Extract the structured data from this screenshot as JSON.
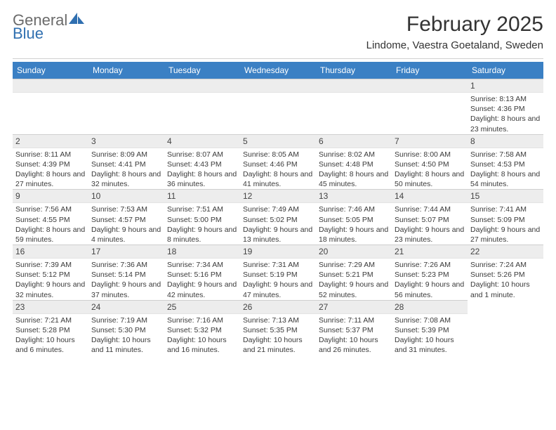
{
  "logo": {
    "text1": "General",
    "text2": "Blue"
  },
  "title": "February 2025",
  "location": "Lindome, Vaestra Goetaland, Sweden",
  "colors": {
    "header_bg": "#3b80c4",
    "header_text": "#ffffff",
    "daynum_bg": "#ededed",
    "logo_gray": "#6b6b6b",
    "logo_blue": "#2f6fb0"
  },
  "weekdays": [
    "Sunday",
    "Monday",
    "Tuesday",
    "Wednesday",
    "Thursday",
    "Friday",
    "Saturday"
  ],
  "weeks": [
    [
      null,
      null,
      null,
      null,
      null,
      null,
      {
        "n": "1",
        "sr": "Sunrise: 8:13 AM",
        "ss": "Sunset: 4:36 PM",
        "dl": "Daylight: 8 hours and 23 minutes."
      }
    ],
    [
      {
        "n": "2",
        "sr": "Sunrise: 8:11 AM",
        "ss": "Sunset: 4:39 PM",
        "dl": "Daylight: 8 hours and 27 minutes."
      },
      {
        "n": "3",
        "sr": "Sunrise: 8:09 AM",
        "ss": "Sunset: 4:41 PM",
        "dl": "Daylight: 8 hours and 32 minutes."
      },
      {
        "n": "4",
        "sr": "Sunrise: 8:07 AM",
        "ss": "Sunset: 4:43 PM",
        "dl": "Daylight: 8 hours and 36 minutes."
      },
      {
        "n": "5",
        "sr": "Sunrise: 8:05 AM",
        "ss": "Sunset: 4:46 PM",
        "dl": "Daylight: 8 hours and 41 minutes."
      },
      {
        "n": "6",
        "sr": "Sunrise: 8:02 AM",
        "ss": "Sunset: 4:48 PM",
        "dl": "Daylight: 8 hours and 45 minutes."
      },
      {
        "n": "7",
        "sr": "Sunrise: 8:00 AM",
        "ss": "Sunset: 4:50 PM",
        "dl": "Daylight: 8 hours and 50 minutes."
      },
      {
        "n": "8",
        "sr": "Sunrise: 7:58 AM",
        "ss": "Sunset: 4:53 PM",
        "dl": "Daylight: 8 hours and 54 minutes."
      }
    ],
    [
      {
        "n": "9",
        "sr": "Sunrise: 7:56 AM",
        "ss": "Sunset: 4:55 PM",
        "dl": "Daylight: 8 hours and 59 minutes."
      },
      {
        "n": "10",
        "sr": "Sunrise: 7:53 AM",
        "ss": "Sunset: 4:57 PM",
        "dl": "Daylight: 9 hours and 4 minutes."
      },
      {
        "n": "11",
        "sr": "Sunrise: 7:51 AM",
        "ss": "Sunset: 5:00 PM",
        "dl": "Daylight: 9 hours and 8 minutes."
      },
      {
        "n": "12",
        "sr": "Sunrise: 7:49 AM",
        "ss": "Sunset: 5:02 PM",
        "dl": "Daylight: 9 hours and 13 minutes."
      },
      {
        "n": "13",
        "sr": "Sunrise: 7:46 AM",
        "ss": "Sunset: 5:05 PM",
        "dl": "Daylight: 9 hours and 18 minutes."
      },
      {
        "n": "14",
        "sr": "Sunrise: 7:44 AM",
        "ss": "Sunset: 5:07 PM",
        "dl": "Daylight: 9 hours and 23 minutes."
      },
      {
        "n": "15",
        "sr": "Sunrise: 7:41 AM",
        "ss": "Sunset: 5:09 PM",
        "dl": "Daylight: 9 hours and 27 minutes."
      }
    ],
    [
      {
        "n": "16",
        "sr": "Sunrise: 7:39 AM",
        "ss": "Sunset: 5:12 PM",
        "dl": "Daylight: 9 hours and 32 minutes."
      },
      {
        "n": "17",
        "sr": "Sunrise: 7:36 AM",
        "ss": "Sunset: 5:14 PM",
        "dl": "Daylight: 9 hours and 37 minutes."
      },
      {
        "n": "18",
        "sr": "Sunrise: 7:34 AM",
        "ss": "Sunset: 5:16 PM",
        "dl": "Daylight: 9 hours and 42 minutes."
      },
      {
        "n": "19",
        "sr": "Sunrise: 7:31 AM",
        "ss": "Sunset: 5:19 PM",
        "dl": "Daylight: 9 hours and 47 minutes."
      },
      {
        "n": "20",
        "sr": "Sunrise: 7:29 AM",
        "ss": "Sunset: 5:21 PM",
        "dl": "Daylight: 9 hours and 52 minutes."
      },
      {
        "n": "21",
        "sr": "Sunrise: 7:26 AM",
        "ss": "Sunset: 5:23 PM",
        "dl": "Daylight: 9 hours and 56 minutes."
      },
      {
        "n": "22",
        "sr": "Sunrise: 7:24 AM",
        "ss": "Sunset: 5:26 PM",
        "dl": "Daylight: 10 hours and 1 minute."
      }
    ],
    [
      {
        "n": "23",
        "sr": "Sunrise: 7:21 AM",
        "ss": "Sunset: 5:28 PM",
        "dl": "Daylight: 10 hours and 6 minutes."
      },
      {
        "n": "24",
        "sr": "Sunrise: 7:19 AM",
        "ss": "Sunset: 5:30 PM",
        "dl": "Daylight: 10 hours and 11 minutes."
      },
      {
        "n": "25",
        "sr": "Sunrise: 7:16 AM",
        "ss": "Sunset: 5:32 PM",
        "dl": "Daylight: 10 hours and 16 minutes."
      },
      {
        "n": "26",
        "sr": "Sunrise: 7:13 AM",
        "ss": "Sunset: 5:35 PM",
        "dl": "Daylight: 10 hours and 21 minutes."
      },
      {
        "n": "27",
        "sr": "Sunrise: 7:11 AM",
        "ss": "Sunset: 5:37 PM",
        "dl": "Daylight: 10 hours and 26 minutes."
      },
      {
        "n": "28",
        "sr": "Sunrise: 7:08 AM",
        "ss": "Sunset: 5:39 PM",
        "dl": "Daylight: 10 hours and 31 minutes."
      },
      null
    ]
  ]
}
